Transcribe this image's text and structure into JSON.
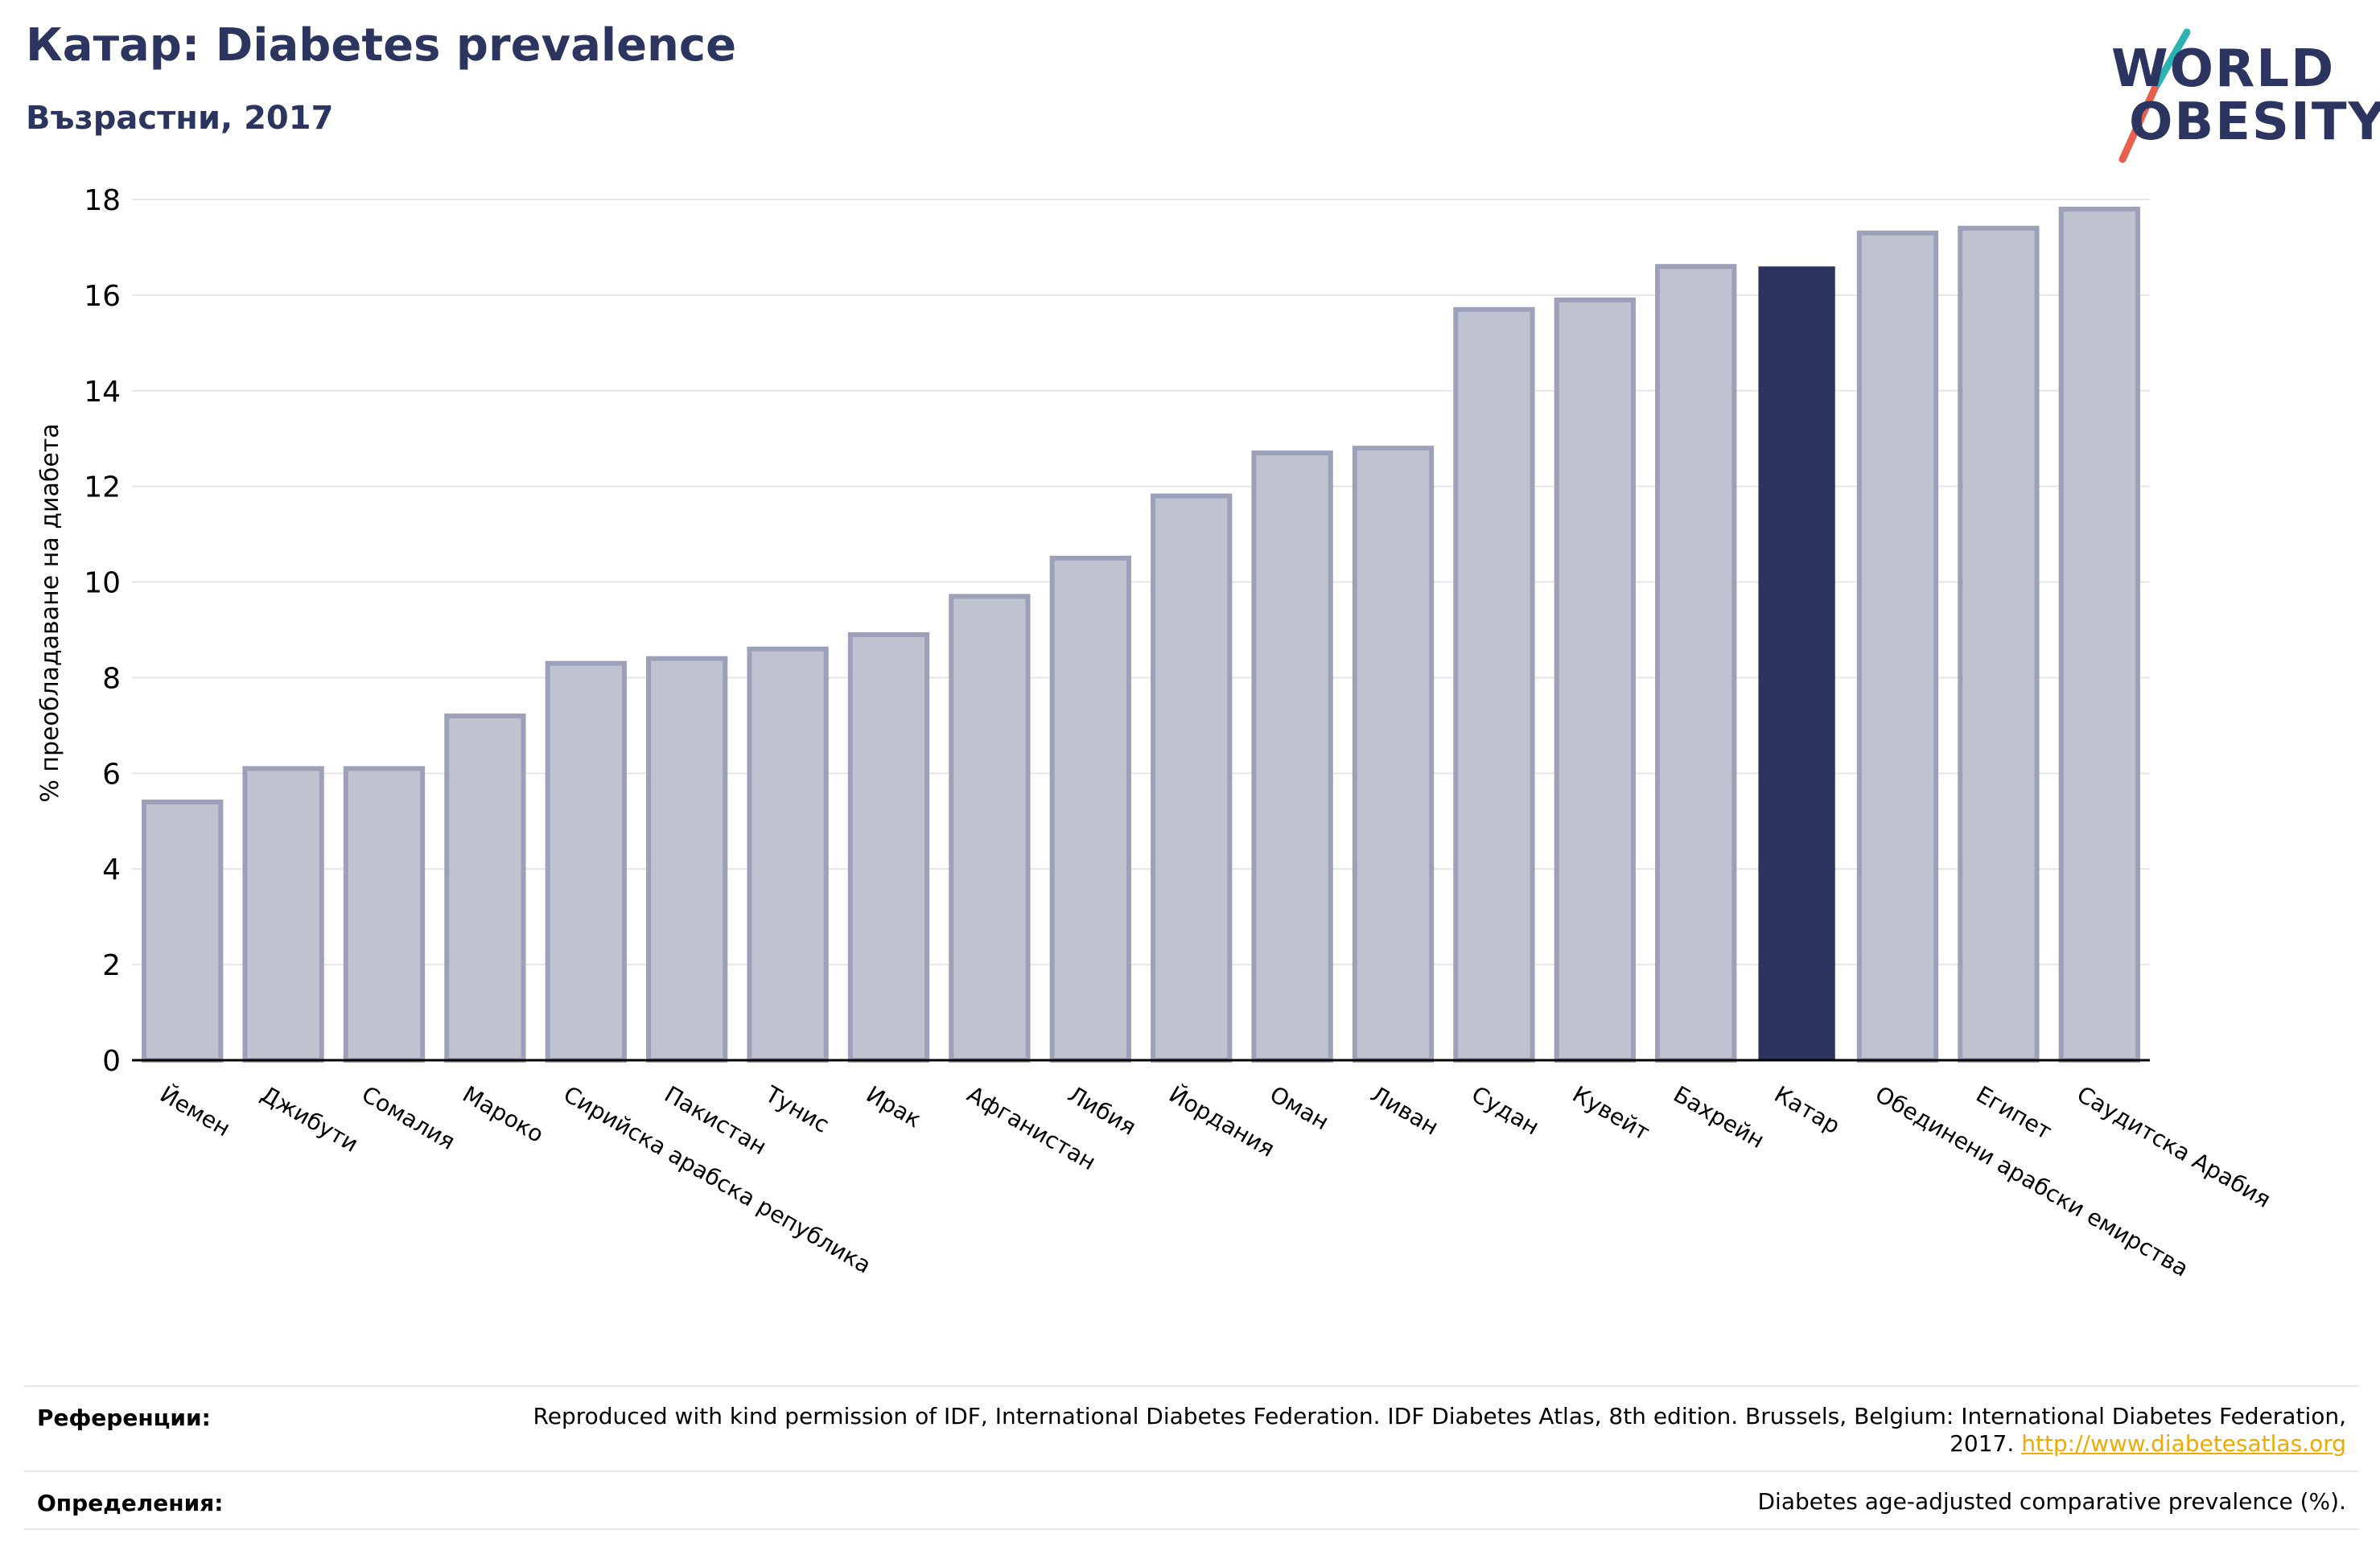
{
  "header": {
    "title": "Катар: Diabetes prevalence",
    "subtitle": "Възрастни, 2017"
  },
  "logo": {
    "line1": "WORLD",
    "line2": "OBESITY",
    "brand_color": "#2b3560",
    "slash_colors": [
      "#2bb3b1",
      "#e8604c"
    ]
  },
  "chart_data": {
    "type": "bar",
    "ylabel": "% преобладаване на диабета",
    "xlabel": "",
    "ylim": [
      0,
      18
    ],
    "yticks": [
      0,
      2,
      4,
      6,
      8,
      10,
      12,
      14,
      16,
      18
    ],
    "grid": true,
    "categories": [
      "Йемен",
      "Джибути",
      "Сомалия",
      "Мароко",
      "Сирийска арабска република",
      "Пакистан",
      "Тунис",
      "Ирак",
      "Афганистан",
      "Либия",
      "Йордания",
      "Оман",
      "Ливан",
      "Судан",
      "Кувейт",
      "Бахрейн",
      "Катар",
      "Обединени арабски емирства",
      "Египет",
      "Саудитска Арабия"
    ],
    "values": [
      5.4,
      6.1,
      6.1,
      7.2,
      8.3,
      8.4,
      8.6,
      8.9,
      9.7,
      10.5,
      11.8,
      12.7,
      12.8,
      15.7,
      15.9,
      16.6,
      16.6,
      17.3,
      17.4,
      17.8
    ],
    "highlight": "Катар",
    "colors": {
      "bar": "#bfc2cf",
      "bar_edge": "#9ca1b9",
      "highlight": "#2b3560",
      "grid": "#e6e6ea",
      "axis": "#000000"
    }
  },
  "references": {
    "label": "Референции:",
    "text": "Reproduced with kind permission of IDF, International Diabetes Federation. IDF Diabetes Atlas, 8th edition. Brussels, Belgium: International Diabetes Federation, 2017.",
    "link": "http://www.diabetesatlas.org"
  },
  "definitions": {
    "label": "Определения:",
    "text": "Diabetes age-adjusted comparative prevalence (%)."
  }
}
